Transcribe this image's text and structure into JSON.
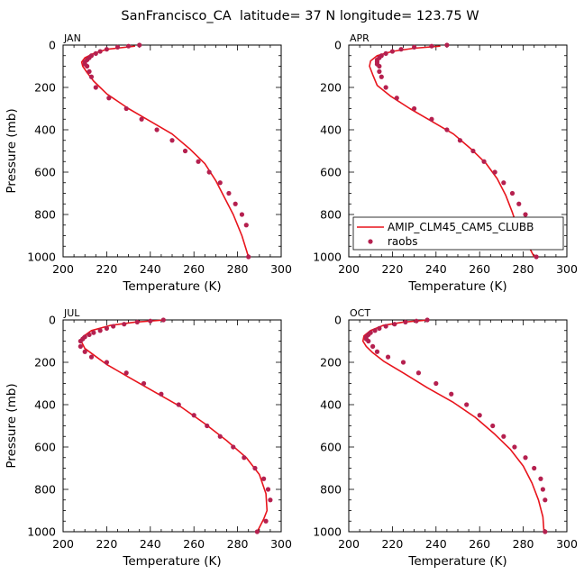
{
  "title": "SanFrancisco_CA  latitude= 37 N longitude= 123.75 W",
  "colors": {
    "model": "#e8141c",
    "obs": "#b5204f"
  },
  "legend": {
    "model": "AMIP_CLM45_CAM5_CLUBB",
    "obs": "raobs"
  },
  "chart_data": [
    {
      "type": "line",
      "panel": "JAN",
      "xlabel": "Temperature (K)",
      "ylabel": "Pressure (mb)",
      "xlim": [
        200,
        300
      ],
      "ylim": [
        1000,
        0
      ],
      "xticks": [
        200,
        220,
        240,
        260,
        280,
        300
      ],
      "yticks": [
        0,
        200,
        400,
        600,
        800,
        1000
      ],
      "series": [
        {
          "name": "AMIP_CLM45_CAM5_CLUBB",
          "style": "line",
          "x": [
            233,
            220,
            214,
            210,
            208.5,
            209,
            211,
            214,
            220,
            230,
            240,
            250,
            258,
            265,
            270,
            274,
            278,
            282,
            285
          ],
          "y": [
            5,
            20,
            40,
            60,
            80,
            100,
            130,
            170,
            230,
            300,
            360,
            420,
            490,
            560,
            640,
            720,
            800,
            900,
            1000
          ]
        },
        {
          "name": "raobs",
          "style": "markers",
          "x": [
            235,
            230,
            225,
            220,
            217,
            215,
            213,
            212,
            211,
            210,
            210,
            211,
            212,
            213,
            215,
            221,
            229,
            236,
            243,
            250,
            256,
            262,
            267,
            272,
            276,
            279,
            282,
            284,
            285
          ],
          "y": [
            0,
            5,
            10,
            20,
            30,
            40,
            50,
            60,
            70,
            80,
            90,
            100,
            125,
            150,
            200,
            250,
            300,
            350,
            400,
            450,
            500,
            550,
            600,
            650,
            700,
            750,
            800,
            850,
            1000
          ]
        }
      ]
    },
    {
      "type": "line",
      "panel": "APR",
      "xlabel": "Temperature (K)",
      "ylabel": "Pressure (mb)",
      "xlim": [
        200,
        300
      ],
      "ylim": [
        1000,
        0
      ],
      "xticks": [
        200,
        220,
        240,
        260,
        280,
        300
      ],
      "yticks": [
        0,
        200,
        400,
        600,
        800,
        1000
      ],
      "series": [
        {
          "name": "AMIP_CLM45_CAM5_CLUBB",
          "style": "line",
          "x": [
            242,
            230,
            220,
            213,
            210,
            209.5,
            211,
            213,
            219,
            228,
            238,
            248,
            256,
            263,
            268,
            272,
            275,
            277,
            281,
            285
          ],
          "y": [
            5,
            15,
            30,
            50,
            75,
            100,
            140,
            190,
            240,
            300,
            360,
            420,
            490,
            560,
            630,
            710,
            790,
            850,
            920,
            1000
          ]
        },
        {
          "name": "raobs",
          "style": "markers",
          "x": [
            245,
            238,
            230,
            224,
            220,
            217,
            215,
            214,
            213,
            213,
            213,
            214,
            214,
            215,
            217,
            222,
            230,
            238,
            245,
            251,
            257,
            262,
            267,
            271,
            275,
            278,
            281,
            283,
            285,
            286
          ],
          "y": [
            0,
            5,
            10,
            20,
            30,
            40,
            50,
            60,
            70,
            80,
            90,
            100,
            125,
            150,
            200,
            250,
            300,
            350,
            400,
            450,
            500,
            550,
            600,
            650,
            700,
            750,
            800,
            850,
            900,
            1000
          ]
        }
      ]
    },
    {
      "type": "line",
      "panel": "JUL",
      "xlabel": "Temperature (K)",
      "ylabel": "Pressure (mb)",
      "xlim": [
        200,
        300
      ],
      "ylim": [
        1000,
        0
      ],
      "xticks": [
        200,
        220,
        240,
        260,
        280,
        300
      ],
      "yticks": [
        0,
        200,
        400,
        600,
        800,
        1000
      ],
      "series": [
        {
          "name": "AMIP_CLM45_CAM5_CLUBB",
          "style": "line",
          "x": [
            247,
            233,
            222,
            213,
            209,
            208.5,
            210,
            214,
            220,
            230,
            242,
            254,
            265,
            275,
            284,
            290,
            293,
            293.5,
            292,
            289
          ],
          "y": [
            0,
            10,
            25,
            50,
            80,
            105,
            135,
            165,
            210,
            270,
            340,
            410,
            490,
            570,
            650,
            730,
            820,
            900,
            940,
            1000
          ]
        },
        {
          "name": "raobs",
          "style": "markers",
          "x": [
            246,
            240,
            234,
            228,
            223,
            220,
            217,
            214,
            212,
            210,
            209,
            208,
            208,
            210,
            213,
            220,
            229,
            237,
            245,
            253,
            260,
            266,
            272,
            278,
            283,
            288,
            292,
            294,
            295,
            293,
            289
          ],
          "y": [
            0,
            5,
            10,
            20,
            30,
            40,
            50,
            60,
            70,
            80,
            90,
            100,
            125,
            150,
            175,
            200,
            250,
            300,
            350,
            400,
            450,
            500,
            550,
            600,
            650,
            700,
            750,
            800,
            850,
            950,
            1000
          ]
        }
      ]
    },
    {
      "type": "line",
      "panel": "OCT",
      "xlabel": "Temperature (K)",
      "ylabel": "Pressure (mb)",
      "xlim": [
        200,
        300
      ],
      "ylim": [
        1000,
        0
      ],
      "xticks": [
        200,
        220,
        240,
        260,
        280,
        300
      ],
      "yticks": [
        0,
        200,
        400,
        600,
        800,
        1000
      ],
      "series": [
        {
          "name": "AMIP_CLM45_CAM5_CLUBB",
          "style": "line",
          "x": [
            237,
            225,
            216,
            210,
            207,
            206.5,
            208,
            211,
            216,
            225,
            236,
            248,
            258,
            267,
            274,
            280,
            284,
            287,
            289,
            289.5
          ],
          "y": [
            0,
            10,
            25,
            50,
            75,
            100,
            125,
            155,
            195,
            250,
            320,
            390,
            460,
            540,
            610,
            690,
            770,
            850,
            930,
            1000
          ]
        },
        {
          "name": "raobs",
          "style": "markers",
          "x": [
            236,
            231,
            226,
            221,
            217,
            214,
            212,
            210,
            209,
            208,
            208,
            209,
            211,
            213,
            218,
            225,
            232,
            240,
            247,
            254,
            260,
            266,
            271,
            276,
            281,
            285,
            288,
            289,
            290,
            290
          ],
          "y": [
            0,
            5,
            10,
            20,
            30,
            40,
            50,
            60,
            70,
            80,
            90,
            100,
            125,
            150,
            175,
            200,
            250,
            300,
            350,
            400,
            450,
            500,
            550,
            600,
            650,
            700,
            750,
            800,
            850,
            1000
          ]
        }
      ]
    }
  ]
}
